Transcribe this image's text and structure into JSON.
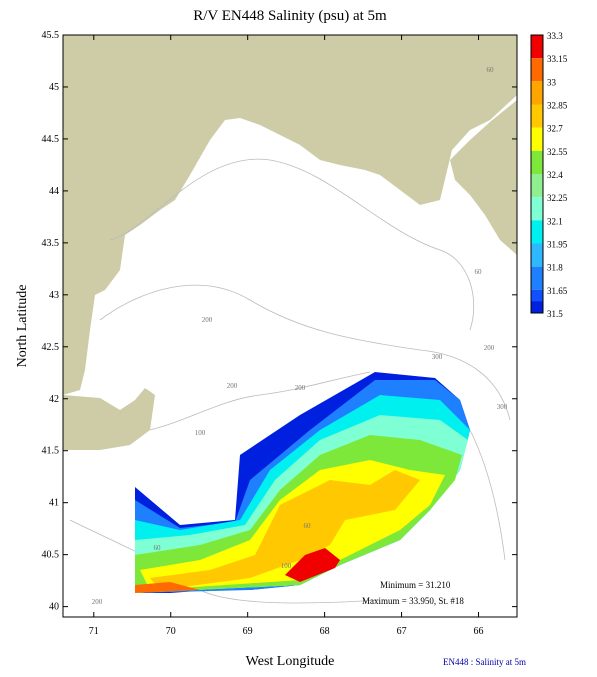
{
  "chart_data": {
    "type": "contour-map",
    "title": "R/V EN448 Salinity (psu) at 5m",
    "x_label": "West Longitude",
    "y_label": "North Latitude",
    "xlim": [
      71.4,
      65.5
    ],
    "ylim": [
      39.9,
      45.5
    ],
    "xticks": [
      71,
      70,
      69,
      68,
      67,
      66
    ],
    "yticks": [
      40,
      40.5,
      41,
      41.5,
      42,
      42.5,
      43,
      43.5,
      44,
      44.5,
      45,
      45.5
    ],
    "colorbar_levels": [
      33.3,
      33.15,
      33,
      32.85,
      32.7,
      32.55,
      32.4,
      32.25,
      32.1,
      31.95,
      31.8,
      31.65,
      31.5
    ],
    "colorbar_colors": [
      "#f00000",
      "#ff6a00",
      "#ffa500",
      "#ffc800",
      "#ffff00",
      "#7ee83a",
      "#90f090",
      "#7fffd4",
      "#00f0f0",
      "#30b8ff",
      "#1e7fff",
      "#1050ff",
      "#0020e0"
    ],
    "contour_labels": [
      "60",
      "60",
      "200",
      "300",
      "200",
      "300",
      "200",
      "200",
      "100",
      "60",
      "60",
      "100",
      "200"
    ],
    "annotations": [
      "Minimum = 31.210",
      "Maximum = 33.950, St. #18"
    ],
    "footer": "EN448 : Salinity at 5m"
  }
}
